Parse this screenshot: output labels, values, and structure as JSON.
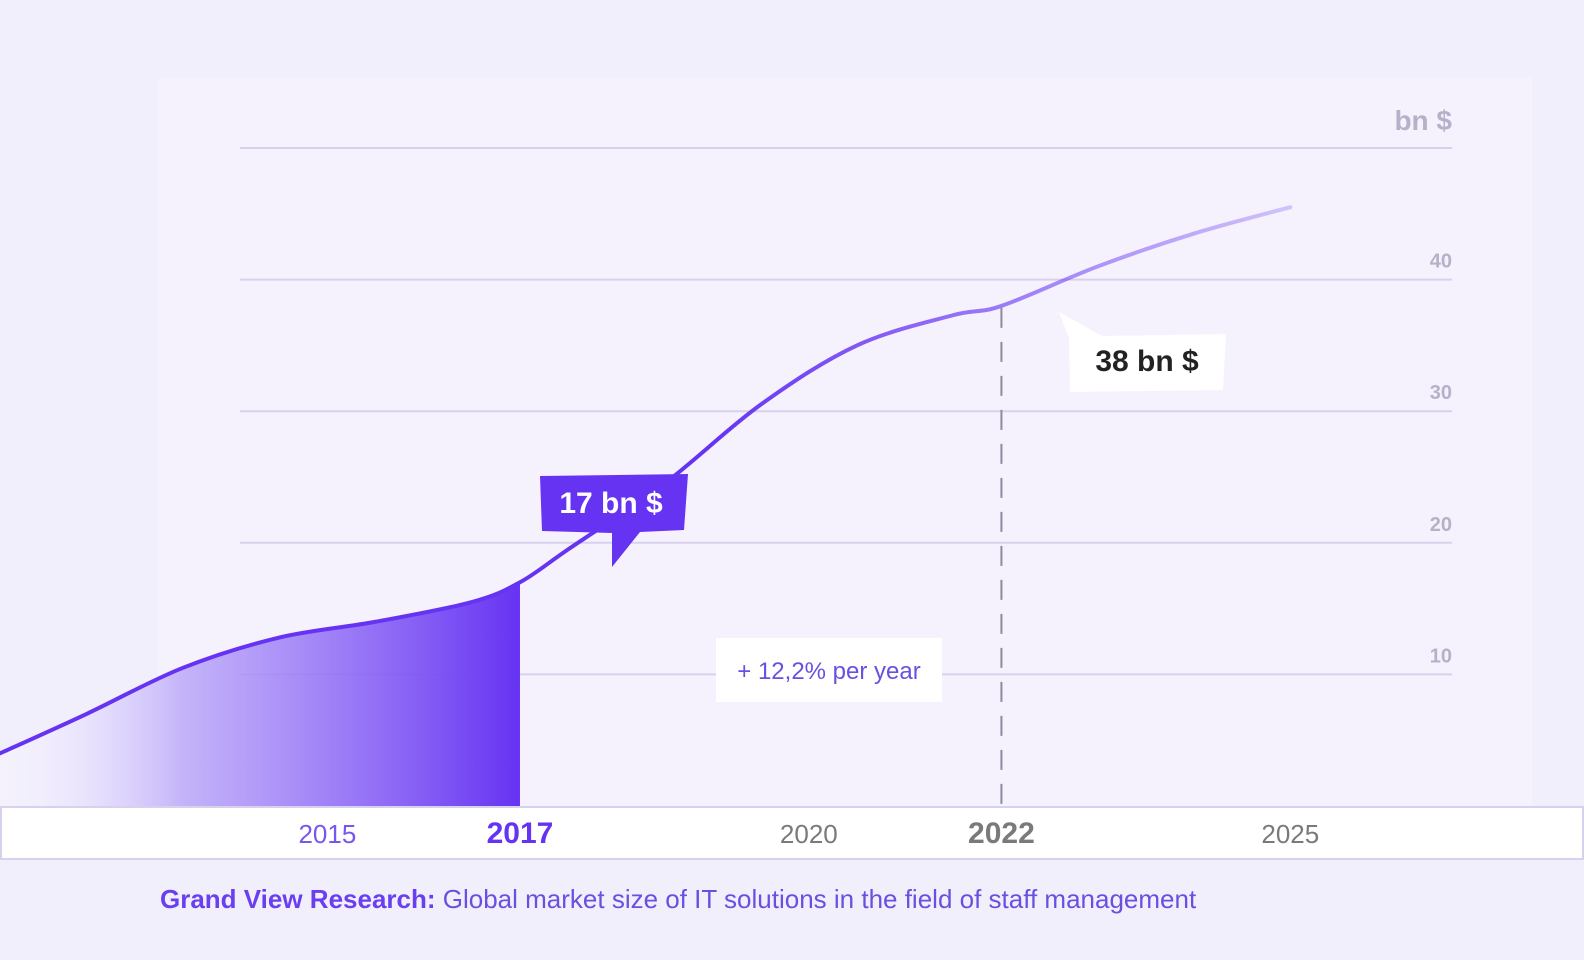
{
  "colors": {
    "background": "#f2effd",
    "plot_background": "#f5f2fe",
    "accent": "#6633f2",
    "accent_light": "#a08cf0",
    "grid": "#d7d1ee",
    "muted_text": "#b6b1c8"
  },
  "caption": {
    "source": "Grand View Research:",
    "text": " Global market size of IT solutions in the field of staff management"
  },
  "chart_data": {
    "type": "area",
    "title": "",
    "xlabel": "",
    "ylabel": "bn $",
    "xlim": [
      2011.6,
      2028.05
    ],
    "ylim": [
      0,
      50
    ],
    "y_ticks": [
      10,
      20,
      30,
      40
    ],
    "grid": true,
    "x_ticks": [
      {
        "year": 2015,
        "label": "2015",
        "emphasis": "accent"
      },
      {
        "year": 2017,
        "label": "2017",
        "emphasis": "accent-bold"
      },
      {
        "year": 2020,
        "label": "2020",
        "emphasis": "none"
      },
      {
        "year": 2022,
        "label": "2022",
        "emphasis": "bold"
      },
      {
        "year": 2025,
        "label": "2025",
        "emphasis": "none"
      }
    ],
    "series": [
      {
        "x": [
          2011.6,
          2012.5,
          2013.5,
          2014.5,
          2015.5,
          2016.5,
          2017,
          2017.5,
          2018.5,
          2019.5,
          2020.5,
          2021.5,
          2022,
          2023,
          2024,
          2025
        ],
        "values": [
          4,
          7,
          10.5,
          12.8,
          14,
          15.5,
          17,
          19.5,
          24.5,
          30.5,
          35,
          37.3,
          38,
          41,
          43.5,
          45.5
        ],
        "shaded_until": 2017
      }
    ],
    "annotations": [
      {
        "x": 2017,
        "y": 17,
        "text": "17 bn $",
        "style": "filled"
      },
      {
        "x": 2022,
        "y": 38,
        "text": "38 bn $",
        "style": "outlined",
        "guide_line": "dashed"
      },
      {
        "text": "+ 12,2% per year",
        "style": "box"
      }
    ]
  }
}
